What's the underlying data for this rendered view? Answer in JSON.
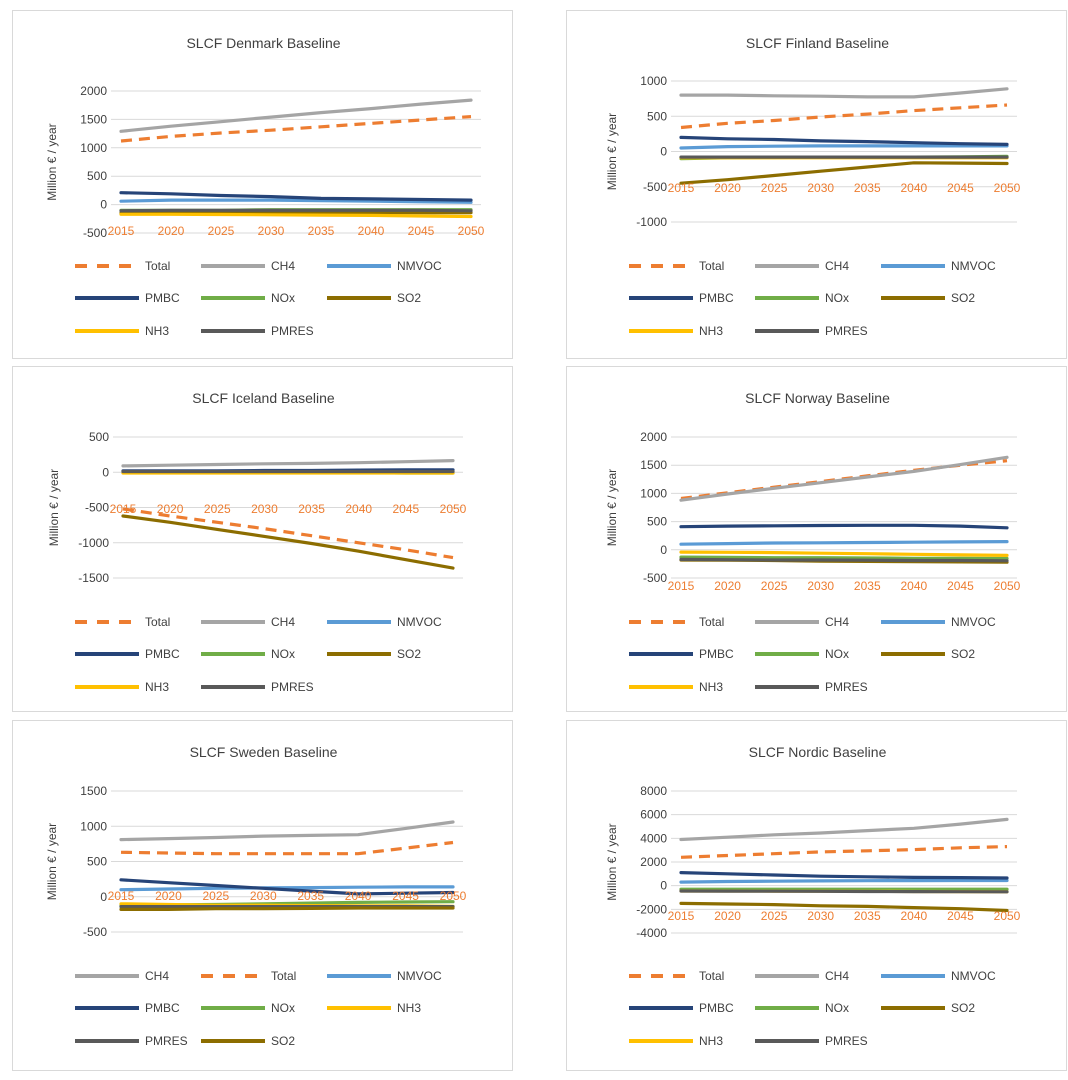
{
  "chart_data": [
    {
      "type": "line",
      "title": "SLCF Denmark Baseline",
      "ylabel": "Million € / year",
      "x": [
        "2015",
        "2020",
        "2025",
        "2030",
        "2035",
        "2040",
        "2045",
        "2050"
      ],
      "yticks": [
        2000,
        1500,
        1000,
        500,
        0,
        -500
      ],
      "ylim": [
        -500,
        2000
      ],
      "legend_order": [
        "Total",
        "CH4",
        "NMVOC",
        "PMBC",
        "NOx",
        "SO2",
        "NH3",
        "PMRES"
      ],
      "series": [
        {
          "name": "Total",
          "color": "#ED7D31",
          "dash": true,
          "values": [
            1120,
            1200,
            1260,
            1310,
            1370,
            1430,
            1490,
            1550
          ]
        },
        {
          "name": "CH4",
          "color": "#A5A5A5",
          "values": [
            1290,
            1380,
            1460,
            1540,
            1620,
            1690,
            1770,
            1840
          ]
        },
        {
          "name": "NMVOC",
          "color": "#5B9BD5",
          "values": [
            60,
            80,
            80,
            80,
            70,
            60,
            50,
            40
          ]
        },
        {
          "name": "PMBC",
          "color": "#264478",
          "values": [
            210,
            190,
            160,
            140,
            110,
            100,
            90,
            80
          ]
        },
        {
          "name": "NOx",
          "color": "#70AD47",
          "values": [
            -100,
            -100,
            -100,
            -90,
            -90,
            -90,
            -90,
            -90
          ]
        },
        {
          "name": "SO2",
          "color": "#8C6D00",
          "values": [
            -150,
            -150,
            -150,
            -150,
            -140,
            -140,
            -140,
            -140
          ]
        },
        {
          "name": "NH3",
          "color": "#FFC000",
          "values": [
            -170,
            -170,
            -175,
            -180,
            -185,
            -190,
            -200,
            -210
          ]
        },
        {
          "name": "PMRES",
          "color": "#595959",
          "values": [
            -110,
            -100,
            -100,
            -100,
            -100,
            -100,
            -100,
            -110
          ]
        }
      ]
    },
    {
      "type": "line",
      "title": "SLCF Finland Baseline",
      "ylabel": "Million € / year",
      "x": [
        "2015",
        "2020",
        "2025",
        "2030",
        "2035",
        "2040",
        "2045",
        "2050"
      ],
      "yticks": [
        1000,
        500,
        0,
        -500,
        -1000
      ],
      "ylim": [
        -1000,
        1000
      ],
      "legend_order": [
        "Total",
        "CH4",
        "NMVOC",
        "PMBC",
        "NOx",
        "SO2",
        "NH3",
        "PMRES"
      ],
      "series": [
        {
          "name": "Total",
          "color": "#ED7D31",
          "dash": true,
          "values": [
            340,
            400,
            440,
            490,
            530,
            580,
            620,
            660
          ]
        },
        {
          "name": "CH4",
          "color": "#A5A5A5",
          "values": [
            800,
            800,
            790,
            785,
            775,
            775,
            830,
            890
          ]
        },
        {
          "name": "NMVOC",
          "color": "#5B9BD5",
          "values": [
            50,
            70,
            75,
            80,
            80,
            80,
            80,
            80
          ]
        },
        {
          "name": "PMBC",
          "color": "#264478",
          "values": [
            200,
            180,
            170,
            150,
            140,
            125,
            110,
            100
          ]
        },
        {
          "name": "NOx",
          "color": "#70AD47",
          "values": [
            -100,
            -90,
            -85,
            -80,
            -80,
            -80,
            -75,
            -70
          ]
        },
        {
          "name": "SO2",
          "color": "#8C6D00",
          "values": [
            -450,
            -400,
            -340,
            -280,
            -220,
            -160,
            -165,
            -170
          ]
        },
        {
          "name": "NH3",
          "color": "#FFC000",
          "values": [
            -90,
            -90,
            -90,
            -90,
            -90,
            -90,
            -90,
            -90
          ]
        },
        {
          "name": "PMRES",
          "color": "#595959",
          "values": [
            -80,
            -80,
            -80,
            -80,
            -80,
            -80,
            -80,
            -80
          ]
        }
      ]
    },
    {
      "type": "line",
      "title": "SLCF Iceland Baseline",
      "ylabel": "Million € / year",
      "x": [
        "2015",
        "2020",
        "2025",
        "2030",
        "2035",
        "2040",
        "2045",
        "2050"
      ],
      "yticks": [
        500,
        0,
        -500,
        -1000,
        -1500
      ],
      "ylim": [
        -1500,
        500
      ],
      "legend_order": [
        "Total",
        "CH4",
        "NMVOC",
        "PMBC",
        "NOx",
        "SO2",
        "NH3",
        "PMRES"
      ],
      "series": [
        {
          "name": "Total",
          "color": "#ED7D31",
          "dash": true,
          "values": [
            -520,
            -620,
            -710,
            -800,
            -900,
            -1000,
            -1100,
            -1210
          ]
        },
        {
          "name": "CH4",
          "color": "#A5A5A5",
          "values": [
            90,
            100,
            110,
            120,
            125,
            135,
            150,
            165
          ]
        },
        {
          "name": "NMVOC",
          "color": "#5B9BD5",
          "values": [
            5,
            5,
            5,
            5,
            5,
            5,
            5,
            5
          ]
        },
        {
          "name": "PMBC",
          "color": "#264478",
          "values": [
            20,
            20,
            20,
            25,
            25,
            30,
            35,
            35
          ]
        },
        {
          "name": "NOx",
          "color": "#70AD47",
          "values": [
            -5,
            -5,
            -5,
            -5,
            -5,
            -5,
            -10,
            -10
          ]
        },
        {
          "name": "SO2",
          "color": "#8C6D00",
          "values": [
            -620,
            -710,
            -810,
            -910,
            -1010,
            -1120,
            -1240,
            -1360
          ]
        },
        {
          "name": "NH3",
          "color": "#FFC000",
          "values": [
            -10,
            -10,
            -10,
            -10,
            -10,
            -10,
            -10,
            -10
          ]
        },
        {
          "name": "PMRES",
          "color": "#595959",
          "values": [
            10,
            10,
            10,
            10,
            10,
            10,
            10,
            10
          ]
        }
      ]
    },
    {
      "type": "line",
      "title": "SLCF Norway Baseline",
      "ylabel": "Million € / year",
      "x": [
        "2015",
        "2020",
        "2025",
        "2030",
        "2035",
        "2040",
        "2045",
        "2050"
      ],
      "yticks": [
        2000,
        1500,
        1000,
        500,
        0,
        -500
      ],
      "ylim": [
        -500,
        2000
      ],
      "legend_order": [
        "Total",
        "CH4",
        "NMVOC",
        "PMBC",
        "NOx",
        "SO2",
        "NH3",
        "PMRES"
      ],
      "series": [
        {
          "name": "Total",
          "color": "#ED7D31",
          "dash": true,
          "values": [
            910,
            1010,
            1110,
            1210,
            1310,
            1410,
            1500,
            1580
          ]
        },
        {
          "name": "CH4",
          "color": "#A5A5A5",
          "values": [
            880,
            990,
            1090,
            1190,
            1290,
            1390,
            1510,
            1640
          ]
        },
        {
          "name": "NMVOC",
          "color": "#5B9BD5",
          "values": [
            100,
            110,
            120,
            125,
            130,
            135,
            140,
            145
          ]
        },
        {
          "name": "PMBC",
          "color": "#264478",
          "values": [
            410,
            420,
            425,
            430,
            435,
            435,
            420,
            390
          ]
        },
        {
          "name": "NOx",
          "color": "#70AD47",
          "values": [
            -130,
            -135,
            -140,
            -140,
            -145,
            -150,
            -150,
            -155
          ]
        },
        {
          "name": "SO2",
          "color": "#8C6D00",
          "values": [
            -180,
            -185,
            -190,
            -200,
            -205,
            -210,
            -215,
            -220
          ]
        },
        {
          "name": "NH3",
          "color": "#FFC000",
          "values": [
            -40,
            -45,
            -50,
            -60,
            -70,
            -80,
            -90,
            -100
          ]
        },
        {
          "name": "PMRES",
          "color": "#595959",
          "values": [
            -170,
            -175,
            -180,
            -180,
            -185,
            -190,
            -190,
            -195
          ]
        }
      ]
    },
    {
      "type": "line",
      "title": "SLCF Sweden Baseline",
      "ylabel": "Million € / year",
      "x": [
        "2015",
        "2020",
        "2025",
        "2030",
        "2035",
        "2040",
        "2045",
        "2050"
      ],
      "yticks": [
        1500,
        1000,
        500,
        0,
        -500
      ],
      "ylim": [
        -500,
        1500
      ],
      "legend_order": [
        "CH4",
        "Total",
        "NMVOC",
        "PMBC",
        "NOx",
        "NH3",
        "PMRES",
        "SO2"
      ],
      "series": [
        {
          "name": "CH4",
          "color": "#A5A5A5",
          "values": [
            810,
            825,
            840,
            860,
            870,
            880,
            970,
            1060
          ]
        },
        {
          "name": "Total",
          "color": "#ED7D31",
          "dash": true,
          "values": [
            630,
            620,
            610,
            610,
            610,
            610,
            690,
            770
          ]
        },
        {
          "name": "NMVOC",
          "color": "#5B9BD5",
          "values": [
            100,
            110,
            120,
            125,
            130,
            135,
            140,
            140
          ]
        },
        {
          "name": "PMBC",
          "color": "#264478",
          "values": [
            240,
            200,
            160,
            120,
            80,
            40,
            50,
            60
          ]
        },
        {
          "name": "NOx",
          "color": "#70AD47",
          "values": [
            -120,
            -115,
            -110,
            -100,
            -90,
            -80,
            -75,
            -70
          ]
        },
        {
          "name": "NH3",
          "color": "#FFC000",
          "values": [
            -100,
            -110,
            -120,
            -120,
            -125,
            -130,
            -130,
            -135
          ]
        },
        {
          "name": "PMRES",
          "color": "#595959",
          "values": [
            -140,
            -140,
            -140,
            -140,
            -140,
            -140,
            -140,
            -140
          ]
        },
        {
          "name": "SO2",
          "color": "#8C6D00",
          "values": [
            -180,
            -180,
            -170,
            -170,
            -165,
            -160,
            -160,
            -160
          ]
        }
      ]
    },
    {
      "type": "line",
      "title": "SLCF Nordic Baseline",
      "ylabel": "Million € / year",
      "x": [
        "2015",
        "2020",
        "2025",
        "2030",
        "2035",
        "2040",
        "2045",
        "2050"
      ],
      "yticks": [
        8000,
        6000,
        4000,
        2000,
        0,
        -2000,
        -4000
      ],
      "ylim": [
        -4000,
        8000
      ],
      "legend_order": [
        "Total",
        "CH4",
        "NMVOC",
        "PMBC",
        "NOx",
        "SO2",
        "NH3",
        "PMRES"
      ],
      "series": [
        {
          "name": "Total",
          "color": "#ED7D31",
          "dash": true,
          "values": [
            2400,
            2550,
            2700,
            2850,
            2950,
            3050,
            3200,
            3300
          ]
        },
        {
          "name": "CH4",
          "color": "#A5A5A5",
          "values": [
            3900,
            4100,
            4300,
            4450,
            4650,
            4850,
            5200,
            5600
          ]
        },
        {
          "name": "NMVOC",
          "color": "#5B9BD5",
          "values": [
            300,
            350,
            380,
            400,
            420,
            430,
            440,
            440
          ]
        },
        {
          "name": "PMBC",
          "color": "#264478",
          "values": [
            1100,
            1000,
            900,
            800,
            750,
            700,
            680,
            650
          ]
        },
        {
          "name": "NOx",
          "color": "#70AD47",
          "values": [
            -300,
            -300,
            -300,
            -300,
            -300,
            -300,
            -300,
            -300
          ]
        },
        {
          "name": "SO2",
          "color": "#8C6D00",
          "values": [
            -1500,
            -1550,
            -1600,
            -1700,
            -1750,
            -1850,
            -1950,
            -2100
          ]
        },
        {
          "name": "NH3",
          "color": "#FFC000",
          "values": [
            -450,
            -450,
            -460,
            -470,
            -480,
            -490,
            -500,
            -520
          ]
        },
        {
          "name": "PMRES",
          "color": "#595959",
          "values": [
            -450,
            -460,
            -470,
            -480,
            -490,
            -500,
            -510,
            -520
          ]
        }
      ]
    }
  ]
}
